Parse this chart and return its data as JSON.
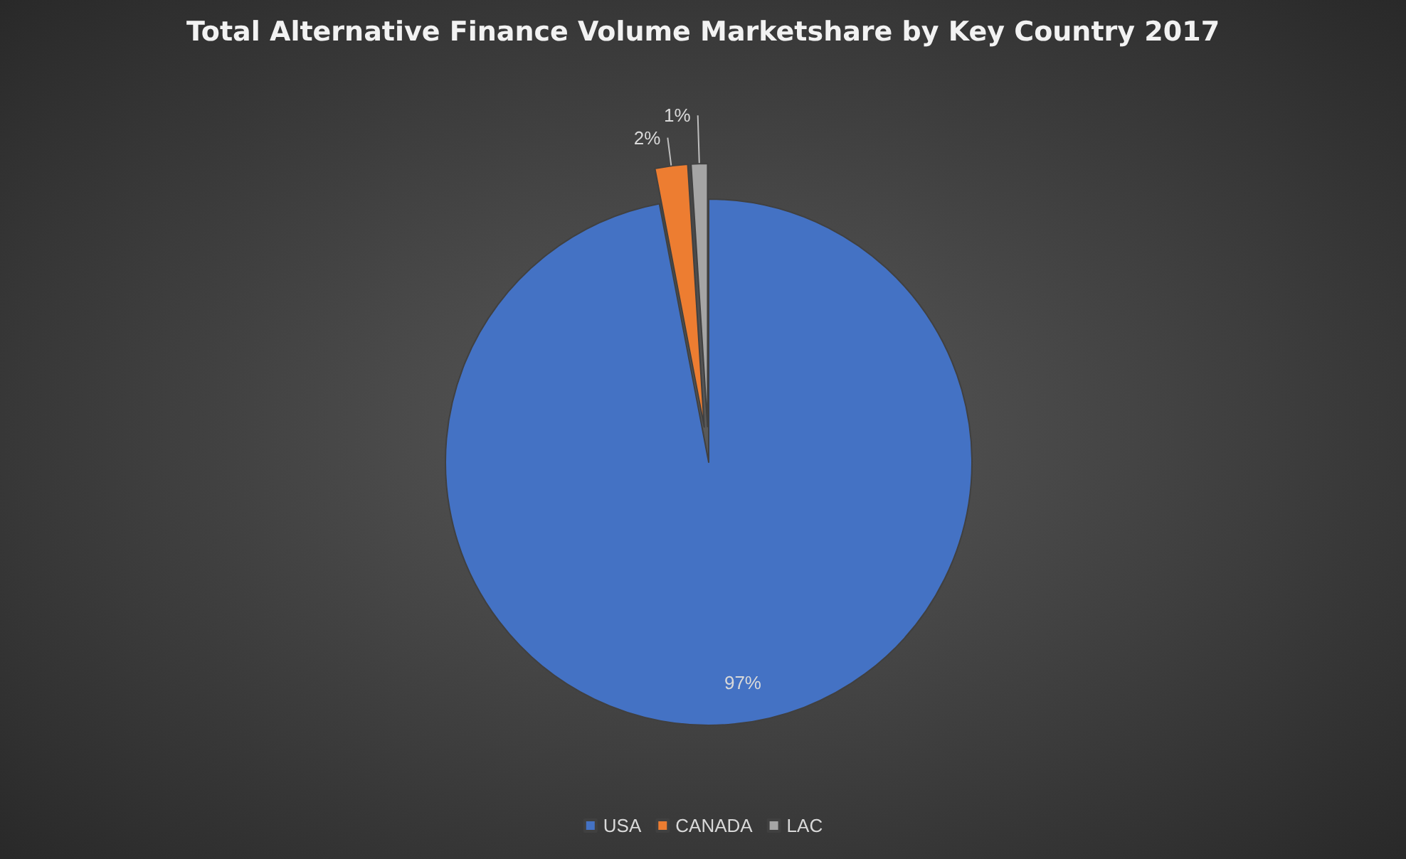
{
  "chart_data": {
    "type": "pie",
    "title": "Total Alternative Finance Volume Marketshare by Key Country 2017",
    "categories": [
      "USA",
      "CANADA",
      "LAC"
    ],
    "values": [
      97,
      2,
      1
    ],
    "colors": [
      "#4472c4",
      "#ed7d31",
      "#a5a5a5"
    ],
    "value_labels": [
      "97%",
      "2%",
      "1%"
    ],
    "legend": "bottom"
  }
}
